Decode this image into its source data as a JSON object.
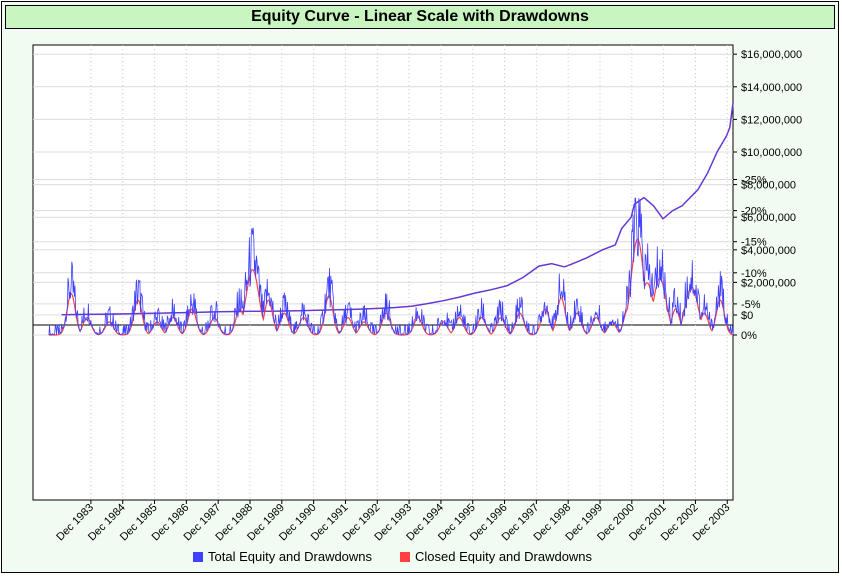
{
  "chart_data": {
    "type": "line",
    "title": "Equity Curve - Linear Scale with Drawdowns",
    "equity": {
      "yticks": [
        "$16,000,000",
        "$14,000,000",
        "$12,000,000",
        "$10,000,000",
        "$8,000,000",
        "$6,000,000",
        "$4,000,000",
        "$2,000,000",
        "$0"
      ],
      "ylim": [
        0,
        17000000
      ],
      "x": [
        1983.0,
        1983.5,
        1984.0,
        1984.5,
        1985.0,
        1985.5,
        1986.0,
        1986.5,
        1987.0,
        1987.5,
        1988.0,
        1988.5,
        1989.0,
        1989.5,
        1990.0,
        1990.5,
        1991.0,
        1991.5,
        1992.0,
        1992.5,
        1993.0,
        1993.5,
        1994.0,
        1994.5,
        1995.0,
        1995.5,
        1996.0,
        1996.5,
        1997.0,
        1997.5,
        1998.0,
        1998.4,
        1998.8,
        1999.0,
        1999.5,
        2000.0,
        2000.4,
        2000.6,
        2000.9,
        2001.0,
        2001.3,
        2001.6,
        2001.9,
        2002.2,
        2002.5,
        2002.9,
        2003.0,
        2003.3,
        2003.6,
        2003.9,
        2004.0,
        2004.1
      ],
      "values": [
        20000,
        30000,
        40000,
        55000,
        70000,
        90000,
        110000,
        130000,
        155000,
        175000,
        200000,
        215000,
        225000,
        235000,
        245000,
        265000,
        290000,
        315000,
        340000,
        370000,
        410000,
        460000,
        540000,
        700000,
        880000,
        1100000,
        1350000,
        1550000,
        1800000,
        2300000,
        3000000,
        3150000,
        2950000,
        3100000,
        3500000,
        4000000,
        4300000,
        5300000,
        6000000,
        6800000,
        7200000,
        6700000,
        5900000,
        6400000,
        6700000,
        7500000,
        7700000,
        8700000,
        10000000,
        11000000,
        11500000,
        13000000
      ]
    },
    "drawdown": {
      "yticks": [
        "0%",
        "-5%",
        "-10%",
        "-15%",
        "-20%",
        "-25%"
      ],
      "ylim": [
        -26,
        0
      ],
      "events": [
        [
          1983.3,
          -9.5
        ],
        [
          1983.8,
          -4
        ],
        [
          1984.5,
          -3
        ],
        [
          1985.4,
          -8
        ],
        [
          1986.0,
          -3
        ],
        [
          1986.5,
          -4
        ],
        [
          1987.1,
          -6
        ],
        [
          1987.8,
          -4
        ],
        [
          1988.6,
          -6
        ],
        [
          1989.0,
          -15
        ],
        [
          1989.5,
          -8
        ],
        [
          1990.0,
          -5
        ],
        [
          1990.6,
          -4
        ],
        [
          1991.4,
          -9
        ],
        [
          1992.0,
          -4
        ],
        [
          1992.5,
          -3
        ],
        [
          1993.2,
          -5
        ],
        [
          1994.2,
          -4
        ],
        [
          1995.0,
          -3
        ],
        [
          1995.5,
          -4
        ],
        [
          1996.2,
          -4
        ],
        [
          1996.8,
          -4
        ],
        [
          1997.4,
          -5
        ],
        [
          1998.2,
          -6
        ],
        [
          1998.7,
          -8.5
        ],
        [
          1999.2,
          -5
        ],
        [
          1999.8,
          -4
        ],
        [
          2000.3,
          -3
        ],
        [
          2000.8,
          -6
        ],
        [
          2001.1,
          -22
        ],
        [
          2001.4,
          -12
        ],
        [
          2001.8,
          -13
        ],
        [
          2002.3,
          -6
        ],
        [
          2002.8,
          -11
        ],
        [
          2003.2,
          -5
        ],
        [
          2003.7,
          -8
        ]
      ]
    },
    "xticks": [
      "Dec 1983",
      "Dec 1984",
      "Dec 1985",
      "Dec 1986",
      "Dec 1987",
      "Dec 1988",
      "Dec 1989",
      "Dec 1990",
      "Dec 1991",
      "Dec 1992",
      "Dec 1993",
      "Dec 1994",
      "Dec 1995",
      "Dec 1996",
      "Dec 1997",
      "Dec 1998",
      "Dec 1999",
      "Dec 2000",
      "Dec 2001",
      "Dec 2002",
      "Dec 2003"
    ],
    "legend": [
      {
        "name": "Total Equity and Drawdowns",
        "color": "#4040ff"
      },
      {
        "name": "Closed Equity and Drawdowns",
        "color": "#ff4040"
      }
    ],
    "colors": {
      "total": "#4040ff",
      "closed": "#ff4040",
      "grid": "#c8c8c8"
    }
  }
}
